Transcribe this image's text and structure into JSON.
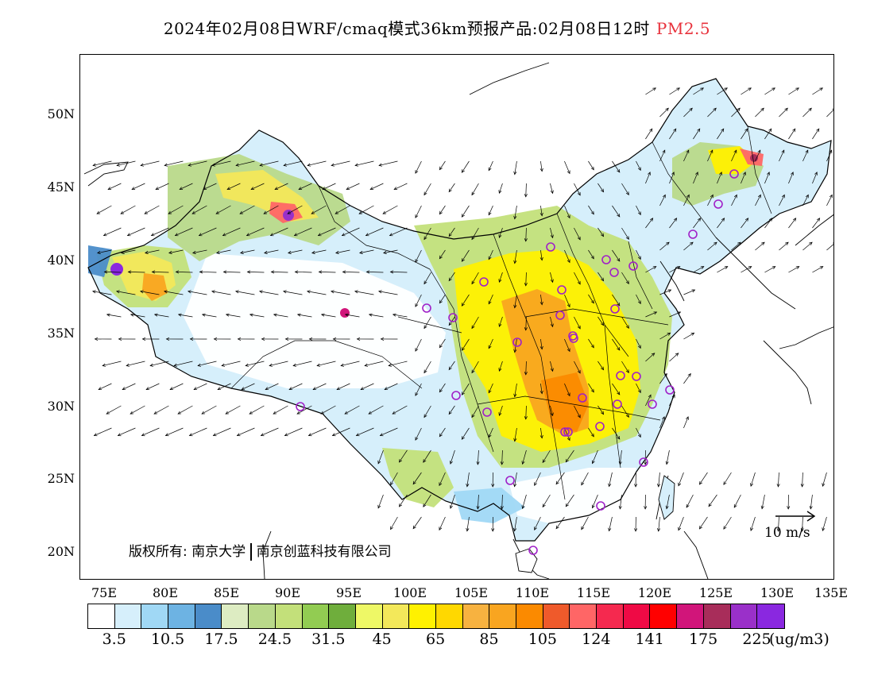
{
  "title": {
    "text": "2024年02月08日WRF/cmaq模式36km预报产品:02月08日12时",
    "pollutant": "PM2.5",
    "pollutant_color": "#e8323c"
  },
  "axes": {
    "lat_labels": [
      "50N",
      "45N",
      "40N",
      "35N",
      "30N",
      "25N",
      "20N"
    ],
    "lon_labels": [
      "75E",
      "80E",
      "85E",
      "90E",
      "95E",
      "100E",
      "105E",
      "110E",
      "115E",
      "120E",
      "125E",
      "130E",
      "135E"
    ]
  },
  "copyright": {
    "prefix": "版权所有:",
    "org1": "南京大学",
    "org2": "南京创蓝科技有限公司"
  },
  "wind_reference": {
    "label": "10 m/s",
    "speed_ms": 10
  },
  "colorbar": {
    "colors": [
      "#ffffff",
      "#d6effb",
      "#a0d8f5",
      "#6db3e3",
      "#4a8cc9",
      "#ddecc2",
      "#b9d98a",
      "#c3e07a",
      "#92cc52",
      "#6fae3c",
      "#eef866",
      "#f3e85a",
      "#fff100",
      "#ffd800",
      "#f7b240",
      "#f9a520",
      "#fb8a00",
      "#ef5a2b",
      "#ff6666",
      "#f5294f",
      "#ef0a45",
      "#ff0000",
      "#d1157a",
      "#a82d5a",
      "#9a30c9",
      "#8a28e0"
    ],
    "labels": [
      "3.5",
      "10.5",
      "17.5",
      "24.5",
      "31.5",
      "45",
      "65",
      "85",
      "105",
      "124",
      "141",
      "175",
      "225"
    ],
    "unit": "(ug/m3)"
  },
  "map": {
    "regions": [
      {
        "name": "northwest-green",
        "color": "#b9d98a"
      },
      {
        "name": "tarim-hotspot",
        "color": "#f9a520"
      },
      {
        "name": "central-plain-yellow",
        "color": "#fff100"
      },
      {
        "name": "central-plain-orange",
        "color": "#fb8a00"
      },
      {
        "name": "northeast-green",
        "color": "#c3e07a"
      },
      {
        "name": "tibet-white",
        "color": "#ffffff"
      },
      {
        "name": "south-blue",
        "color": "#a0d8f5"
      }
    ],
    "city_marker_color": "#a020c8"
  }
}
